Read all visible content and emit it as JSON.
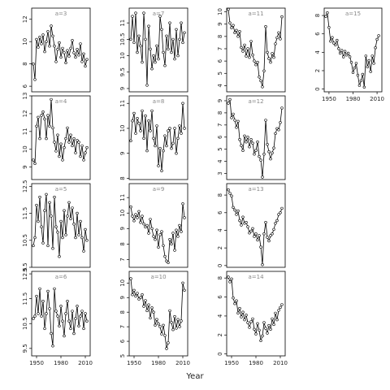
{
  "figure": {
    "xlabel": "Year"
  },
  "chart_data": {
    "type": "line",
    "xlabel": "Year",
    "x_ticks": [
      1950,
      1980,
      2010
    ],
    "x_range": [
      1944,
      2016
    ],
    "panels": [
      {
        "label": "a=3",
        "ylim": [
          5.5,
          13
        ],
        "yticks": [
          6,
          8,
          10,
          12
        ],
        "x": [
          1946,
          1948,
          1950,
          1952,
          1954,
          1956,
          1958,
          1960,
          1962,
          1964,
          1966,
          1968,
          1970,
          1972,
          1974,
          1976,
          1978,
          1980,
          1982,
          1984,
          1986,
          1988,
          1990,
          1992,
          1994,
          1996,
          1998,
          2000,
          2002,
          2004,
          2006,
          2008,
          2010,
          2012
        ],
        "y": [
          8.0,
          6.6,
          10.2,
          9.5,
          10.4,
          9.8,
          10.6,
          9.1,
          10.0,
          10.9,
          9.6,
          11.4,
          10.5,
          9.6,
          8.2,
          9.3,
          9.9,
          8.6,
          9.4,
          9.0,
          8.1,
          9.2,
          8.7,
          9.4,
          10.1,
          9.0,
          8.6,
          9.3,
          8.8,
          9.8,
          8.2,
          8.9,
          7.8,
          8.4
        ]
      },
      {
        "label": "a=4",
        "ylim": [
          8.3,
          13
        ],
        "yticks": [
          9,
          10,
          11,
          12,
          13
        ],
        "x": [
          1946,
          1948,
          1950,
          1952,
          1954,
          1956,
          1958,
          1960,
          1962,
          1964,
          1966,
          1968,
          1970,
          1972,
          1974,
          1976,
          1978,
          1980,
          1982,
          1984,
          1986,
          1988,
          1990,
          1992,
          1994,
          1996,
          1998,
          2000,
          2002,
          2004,
          2006,
          2008,
          2010,
          2012
        ],
        "y": [
          9.4,
          9.2,
          11.3,
          11.8,
          10.6,
          11.9,
          12.1,
          11.7,
          10.6,
          11.9,
          11.3,
          12.8,
          11.2,
          10.4,
          9.9,
          10.8,
          9.6,
          10.3,
          9.4,
          10.1,
          10.6,
          11.2,
          10.4,
          10.8,
          10.2,
          10.6,
          9.8,
          10.5,
          10.4,
          9.6,
          10.2,
          9.4,
          9.8,
          10.1
        ]
      },
      {
        "label": "a=5",
        "ylim": [
          9.5,
          12.6
        ],
        "yticks": [
          9.5,
          10.5,
          11.5,
          12.5
        ],
        "x": [
          1946,
          1948,
          1950,
          1952,
          1954,
          1956,
          1958,
          1960,
          1962,
          1964,
          1966,
          1968,
          1970,
          1972,
          1974,
          1976,
          1978,
          1980,
          1982,
          1984,
          1986,
          1988,
          1990,
          1992,
          1994,
          1996,
          1998,
          2000,
          2002,
          2004,
          2006,
          2008,
          2010,
          2012
        ],
        "y": [
          10.3,
          10.6,
          11.8,
          11.2,
          12.1,
          11.0,
          10.4,
          11.6,
          12.2,
          10.3,
          11.9,
          11.4,
          10.2,
          12.1,
          11.0,
          10.8,
          9.9,
          11.2,
          10.6,
          11.6,
          10.7,
          11.4,
          11.9,
          11.3,
          11.7,
          11.1,
          10.6,
          11.5,
          10.7,
          11.2,
          10.6,
          10.1,
          10.9,
          10.5
        ]
      },
      {
        "label": "a=6",
        "ylim": [
          9.2,
          12.6
        ],
        "yticks": [
          9.5,
          10.5,
          11.5,
          12.5
        ],
        "x": [
          1946,
          1948,
          1950,
          1952,
          1954,
          1956,
          1958,
          1960,
          1962,
          1964,
          1966,
          1968,
          1970,
          1972,
          1974,
          1976,
          1978,
          1980,
          1982,
          1984,
          1986,
          1988,
          1990,
          1992,
          1994,
          1996,
          1998,
          2000,
          2002,
          2004,
          2006,
          2008,
          2010,
          2012
        ],
        "y": [
          10.7,
          10.8,
          11.6,
          10.9,
          11.9,
          10.8,
          11.4,
          10.3,
          10.9,
          11.8,
          11.1,
          10.1,
          9.6,
          11.9,
          11.0,
          10.8,
          10.4,
          11.2,
          10.6,
          10.0,
          10.9,
          11.4,
          10.6,
          10.3,
          11.0,
          10.1,
          10.7,
          11.2,
          10.4,
          10.8,
          11.0,
          10.3,
          10.9,
          10.6
        ]
      },
      {
        "label": "a=7",
        "ylim": [
          8.9,
          11.45
        ],
        "yticks": [
          9.0,
          9.5,
          10.0,
          10.5,
          11.0
        ],
        "x": [
          1946,
          1948,
          1950,
          1952,
          1954,
          1956,
          1958,
          1960,
          1962,
          1964,
          1966,
          1968,
          1970,
          1972,
          1974,
          1976,
          1978,
          1980,
          1982,
          1984,
          1986,
          1988,
          1990,
          1992,
          1994,
          1996,
          1998,
          2000,
          2002,
          2004,
          2006,
          2008,
          2010,
          2012
        ],
        "y": [
          10.5,
          11.2,
          10.4,
          11.3,
          10.1,
          10.6,
          10.3,
          9.8,
          11.3,
          10.5,
          9.1,
          10.9,
          10.2,
          9.6,
          10.0,
          9.8,
          10.3,
          9.9,
          11.2,
          10.8,
          10.1,
          9.7,
          10.6,
          10.2,
          11.0,
          10.1,
          10.5,
          9.9,
          10.8,
          10.0,
          10.5,
          11.0,
          10.4,
          10.7
        ]
      },
      {
        "label": "a=8",
        "ylim": [
          7.95,
          11.3
        ],
        "yticks": [
          8.0,
          9.0,
          10.0,
          11.0
        ],
        "x": [
          1946,
          1948,
          1950,
          1952,
          1954,
          1956,
          1958,
          1960,
          1962,
          1964,
          1966,
          1968,
          1970,
          1972,
          1974,
          1976,
          1978,
          1980,
          1982,
          1984,
          1986,
          1988,
          1990,
          1992,
          1994,
          1996,
          1998,
          2000,
          2002,
          2004,
          2006,
          2008,
          2010,
          2012
        ],
        "y": [
          9.5,
          10.3,
          10.6,
          9.8,
          10.4,
          10.2,
          9.9,
          10.7,
          9.6,
          10.5,
          9.1,
          10.3,
          9.9,
          10.7,
          9.6,
          9.3,
          10.1,
          8.5,
          9.2,
          8.3,
          9.1,
          9.7,
          9.3,
          9.9,
          10.0,
          9.2,
          9.4,
          10.0,
          9.0,
          9.6,
          10.1,
          9.8,
          11.0,
          10.0
        ]
      },
      {
        "label": "a=9",
        "ylim": [
          6.5,
          11.9
        ],
        "yticks": [
          7,
          8,
          9,
          10,
          11
        ],
        "x": [
          1946,
          1948,
          1950,
          1952,
          1954,
          1956,
          1958,
          1960,
          1962,
          1964,
          1966,
          1968,
          1970,
          1972,
          1974,
          1976,
          1978,
          1980,
          1982,
          1984,
          1986,
          1988,
          1990,
          1992,
          1994,
          1996,
          1998,
          2000,
          2002,
          2004,
          2006,
          2008,
          2010,
          2012
        ],
        "y": [
          10.4,
          9.8,
          9.5,
          9.9,
          9.7,
          10.1,
          9.4,
          9.8,
          9.3,
          9.1,
          9.2,
          8.7,
          9.6,
          9.0,
          8.5,
          8.3,
          8.9,
          7.8,
          8.6,
          8.8,
          7.9,
          7.2,
          6.9,
          6.8,
          8.3,
          8.0,
          8.7,
          7.6,
          8.9,
          8.5,
          9.2,
          8.8,
          10.6,
          9.7
        ]
      },
      {
        "label": "a=10",
        "ylim": [
          5,
          10.8
        ],
        "yticks": [
          5,
          6,
          7,
          8,
          9,
          10
        ],
        "x": [
          1946,
          1948,
          1950,
          1952,
          1954,
          1956,
          1958,
          1960,
          1962,
          1964,
          1966,
          1968,
          1970,
          1972,
          1974,
          1976,
          1978,
          1980,
          1982,
          1984,
          1986,
          1988,
          1990,
          1992,
          1994,
          1996,
          1998,
          2000,
          2002,
          2004,
          2006,
          2008,
          2010,
          2012
        ],
        "y": [
          10.3,
          9.2,
          9.5,
          9.1,
          9.3,
          8.9,
          9.0,
          9.2,
          8.4,
          8.8,
          8.1,
          8.5,
          7.6,
          8.3,
          8.0,
          7.1,
          7.5,
          7.2,
          7.0,
          6.5,
          7.1,
          6.4,
          5.5,
          5.9,
          8.1,
          7.3,
          6.8,
          7.7,
          6.9,
          7.5,
          7.0,
          7.4,
          10.0,
          9.5
        ]
      },
      {
        "label": "a=11",
        "ylim": [
          3.5,
          10.3
        ],
        "yticks": [
          4,
          5,
          6,
          7,
          8,
          9,
          10
        ],
        "x": [
          1946,
          1948,
          1950,
          1952,
          1954,
          1956,
          1958,
          1960,
          1962,
          1964,
          1966,
          1968,
          1970,
          1972,
          1974,
          1976,
          1978,
          1980,
          1982,
          1984,
          1986,
          1988,
          1990,
          1992,
          1994,
          1996,
          1998,
          2000,
          2002,
          2004,
          2006,
          2008,
          2010,
          2012
        ],
        "y": [
          10.2,
          9.1,
          8.7,
          8.9,
          8.3,
          8.5,
          8.0,
          8.4,
          7.1,
          6.8,
          7.3,
          6.4,
          7.0,
          6.3,
          7.6,
          6.5,
          6.0,
          5.7,
          5.9,
          4.7,
          4.4,
          3.9,
          5.2,
          8.8,
          6.7,
          6.2,
          5.9,
          6.6,
          6.3,
          7.4,
          7.9,
          8.3,
          7.8,
          9.6
        ]
      },
      {
        "label": "a=12",
        "ylim": [
          2.5,
          9.4
        ],
        "yticks": [
          3,
          4,
          5,
          6,
          7,
          8,
          9
        ],
        "x": [
          1946,
          1948,
          1950,
          1952,
          1954,
          1956,
          1958,
          1960,
          1962,
          1964,
          1966,
          1968,
          1970,
          1972,
          1974,
          1976,
          1978,
          1980,
          1982,
          1984,
          1986,
          1988,
          1990,
          1992,
          1994,
          1996,
          1998,
          2000,
          2002,
          2004,
          2006,
          2008,
          2010,
          2012
        ],
        "y": [
          8.8,
          9.1,
          7.6,
          7.9,
          7.4,
          6.8,
          7.3,
          5.8,
          5.3,
          4.9,
          6.1,
          5.6,
          6.0,
          5.2,
          5.8,
          5.5,
          4.6,
          4.9,
          5.6,
          4.4,
          4.1,
          2.7,
          4.6,
          7.4,
          5.4,
          4.8,
          4.2,
          4.7,
          5.1,
          6.3,
          6.7,
          6.6,
          7.2,
          8.4
        ]
      },
      {
        "label": "a=13",
        "ylim": [
          -0.2,
          9.3
        ],
        "yticks": [
          0,
          2,
          4,
          6,
          8
        ],
        "x": [
          1946,
          1948,
          1950,
          1952,
          1954,
          1956,
          1958,
          1960,
          1962,
          1964,
          1966,
          1968,
          1970,
          1972,
          1974,
          1976,
          1978,
          1980,
          1982,
          1984,
          1986,
          1988,
          1990,
          1992,
          1994,
          1996,
          1998,
          2000,
          2002,
          2004,
          2006,
          2008,
          2010,
          2012
        ],
        "y": [
          8.6,
          8.2,
          7.9,
          6.6,
          6.3,
          5.8,
          6.2,
          5.1,
          4.6,
          5.5,
          4.8,
          4.9,
          4.4,
          3.7,
          3.9,
          4.2,
          3.3,
          3.6,
          2.9,
          3.4,
          2.1,
          0.1,
          3.6,
          4.9,
          3.2,
          2.8,
          3.4,
          3.6,
          4.1,
          4.8,
          5.1,
          5.8,
          6.0,
          6.5
        ]
      },
      {
        "label": "a=14",
        "ylim": [
          -0.2,
          8.7
        ],
        "yticks": [
          0,
          2,
          4,
          6,
          8
        ],
        "x": [
          1946,
          1948,
          1950,
          1952,
          1954,
          1956,
          1958,
          1960,
          1962,
          1964,
          1966,
          1968,
          1970,
          1972,
          1974,
          1976,
          1978,
          1980,
          1982,
          1984,
          1986,
          1988,
          1990,
          1992,
          1994,
          1996,
          1998,
          2000,
          2002,
          2004,
          2006,
          2008,
          2010,
          2012
        ],
        "y": [
          8.1,
          7.6,
          7.9,
          5.9,
          5.3,
          5.6,
          4.3,
          4.8,
          3.9,
          4.4,
          3.6,
          4.1,
          3.3,
          2.8,
          3.4,
          3.7,
          2.6,
          2.1,
          3.2,
          2.5,
          1.4,
          1.9,
          3.3,
          2.7,
          2.2,
          3.0,
          2.6,
          3.7,
          3.1,
          4.3,
          3.6,
          4.6,
          4.9,
          5.2
        ]
      },
      {
        "label": "a=15",
        "ylim": [
          -0.3,
          8.8
        ],
        "yticks": [
          0,
          2,
          4,
          6,
          8
        ],
        "x": [
          1946,
          1948,
          1950,
          1952,
          1954,
          1956,
          1958,
          1960,
          1962,
          1964,
          1966,
          1968,
          1970,
          1972,
          1974,
          1976,
          1978,
          1980,
          1982,
          1984,
          1986,
          1988,
          1990,
          1992,
          1994,
          1996,
          1998,
          2000,
          2002,
          2004,
          2006,
          2008,
          2010,
          2012
        ],
        "y": [
          7.9,
          8.3,
          6.7,
          5.2,
          5.6,
          5.0,
          4.8,
          5.3,
          4.4,
          3.9,
          4.2,
          3.5,
          4.1,
          3.7,
          3.9,
          3.5,
          2.9,
          1.8,
          2.3,
          2.8,
          1.5,
          0.4,
          0.9,
          1.6,
          0.2,
          3.6,
          2.4,
          3.1,
          1.9,
          3.6,
          2.8,
          4.5,
          5.4,
          5.8
        ]
      }
    ]
  }
}
